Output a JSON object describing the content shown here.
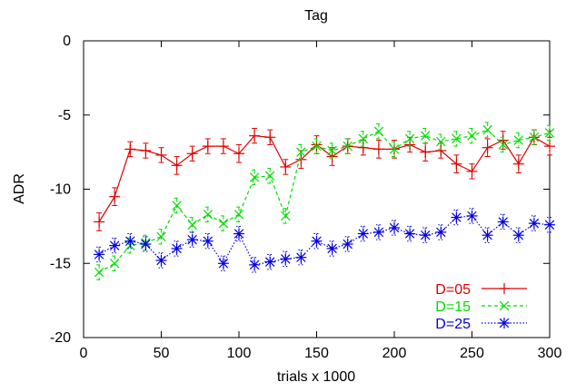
{
  "chart_data": {
    "type": "line",
    "title": "Tag",
    "xlabel": "trials x 1000",
    "ylabel": "ADR",
    "xlim": [
      0,
      300
    ],
    "ylim": [
      -20,
      0
    ],
    "x_ticks": [
      0,
      50,
      100,
      150,
      200,
      250,
      300
    ],
    "y_ticks": [
      0,
      -5,
      -10,
      -15,
      -20
    ],
    "grid": false,
    "legend_position": "bottom-right",
    "series": [
      {
        "name": "D=05",
        "color": "#e00000",
        "marker": "plus",
        "line_style": "solid",
        "x": [
          10,
          20,
          30,
          40,
          50,
          60,
          70,
          80,
          90,
          100,
          110,
          120,
          130,
          140,
          150,
          160,
          170,
          180,
          190,
          200,
          210,
          220,
          230,
          240,
          250,
          260,
          270,
          280,
          290,
          300
        ],
        "y": [
          -12.2,
          -10.5,
          -7.3,
          -7.4,
          -7.7,
          -8.4,
          -7.6,
          -7.1,
          -7.1,
          -7.6,
          -6.4,
          -6.5,
          -8.5,
          -8.0,
          -7.0,
          -7.8,
          -7.1,
          -7.2,
          -7.3,
          -7.3,
          -7.0,
          -7.5,
          -7.4,
          -8.3,
          -8.8,
          -7.2,
          -6.7,
          -8.3,
          -6.5,
          -7.1
        ],
        "err": [
          0.6,
          0.6,
          0.5,
          0.5,
          0.5,
          0.6,
          0.5,
          0.5,
          0.5,
          0.6,
          0.5,
          0.5,
          0.5,
          0.6,
          0.6,
          0.6,
          0.5,
          0.5,
          0.6,
          0.6,
          0.5,
          0.6,
          0.5,
          0.6,
          0.5,
          0.6,
          0.6,
          0.6,
          0.5,
          0.6
        ]
      },
      {
        "name": "D=15",
        "color": "#00dd00",
        "marker": "x",
        "line_style": "dashed",
        "x": [
          10,
          20,
          30,
          40,
          50,
          60,
          70,
          80,
          90,
          100,
          110,
          120,
          130,
          140,
          150,
          160,
          170,
          180,
          190,
          200,
          210,
          220,
          230,
          240,
          250,
          260,
          270,
          280,
          290,
          300
        ],
        "y": [
          -15.6,
          -15.0,
          -13.8,
          -13.6,
          -13.2,
          -11.1,
          -12.4,
          -11.7,
          -12.3,
          -11.7,
          -9.2,
          -9.1,
          -11.8,
          -7.5,
          -7.1,
          -7.4,
          -7.1,
          -6.6,
          -6.1,
          -7.3,
          -6.6,
          -6.4,
          -6.8,
          -6.6,
          -6.4,
          -6.0,
          -7.0,
          -6.7,
          -6.5,
          -6.2
        ],
        "err": [
          0.5,
          0.5,
          0.5,
          0.5,
          0.5,
          0.5,
          0.5,
          0.5,
          0.5,
          0.5,
          0.5,
          0.5,
          0.5,
          0.5,
          0.5,
          0.5,
          0.5,
          0.5,
          0.5,
          0.5,
          0.5,
          0.5,
          0.5,
          0.5,
          0.5,
          0.5,
          0.5,
          0.5,
          0.5,
          0.5
        ]
      },
      {
        "name": "D=25",
        "color": "#0000e0",
        "marker": "star",
        "line_style": "dotted",
        "x": [
          10,
          20,
          30,
          40,
          50,
          60,
          70,
          80,
          90,
          100,
          110,
          120,
          130,
          140,
          150,
          160,
          170,
          180,
          190,
          200,
          210,
          220,
          230,
          240,
          250,
          260,
          270,
          280,
          290,
          300
        ],
        "y": [
          -14.4,
          -13.8,
          -13.5,
          -13.7,
          -14.8,
          -14.0,
          -13.4,
          -13.5,
          -15.0,
          -13.0,
          -15.1,
          -14.9,
          -14.7,
          -14.6,
          -13.5,
          -14.0,
          -13.7,
          -13.0,
          -12.9,
          -12.6,
          -13.0,
          -13.1,
          -12.9,
          -11.9,
          -11.8,
          -13.1,
          -12.2,
          -13.1,
          -12.3,
          -12.4
        ],
        "err": [
          0.5,
          0.5,
          0.5,
          0.5,
          0.5,
          0.5,
          0.5,
          0.5,
          0.5,
          0.5,
          0.5,
          0.5,
          0.5,
          0.5,
          0.5,
          0.5,
          0.5,
          0.5,
          0.5,
          0.5,
          0.5,
          0.5,
          0.5,
          0.5,
          0.5,
          0.5,
          0.5,
          0.5,
          0.5,
          0.5
        ]
      }
    ]
  }
}
